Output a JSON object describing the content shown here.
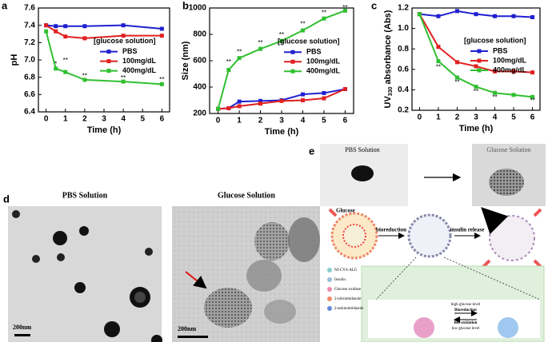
{
  "chart_data": [
    {
      "type": "line",
      "label": "a",
      "xlabel": "Time (h)",
      "ylabel": "pH",
      "legend_title": "[glucose solution]",
      "legend": "center right",
      "x": [
        0,
        0.5,
        1,
        2,
        4,
        6
      ],
      "xlim": [
        -0.4,
        6.4
      ],
      "xticks": [
        0,
        1,
        2,
        3,
        4,
        5,
        6
      ],
      "ylim": [
        6.4,
        7.6
      ],
      "yticks": [
        6.4,
        6.6,
        6.8,
        {
          "value": 7,
          "label": "7.0"
        },
        7.2,
        7.4,
        7.6
      ],
      "series": [
        {
          "name": "PBS",
          "color": "#2020d0",
          "values": [
            7.4,
            7.39,
            7.39,
            7.39,
            7.4,
            7.36
          ]
        },
        {
          "name": "100mg/dL",
          "color": "#e02020",
          "values": [
            7.4,
            7.33,
            7.27,
            7.25,
            7.28,
            7.28
          ]
        },
        {
          "name": "400mg/dL",
          "color": "#30c030",
          "values": [
            7.33,
            6.9,
            6.86,
            6.77,
            6.75,
            6.72
          ]
        }
      ],
      "annotations": [
        {
          "text": "*",
          "x": 0.5,
          "y": 6.95
        },
        {
          "text": "**",
          "x": 1,
          "y": 6.99
        },
        {
          "text": "**",
          "x": 2,
          "y": 6.81
        },
        {
          "text": "**",
          "x": 4,
          "y": 6.79
        },
        {
          "text": "**",
          "x": 6,
          "y": 6.77
        }
      ]
    },
    {
      "type": "line",
      "label": "b",
      "xlabel": "Time (h)",
      "ylabel": "Size (nm)",
      "legend_title": "[glucose solution]",
      "legend": "center right",
      "x": [
        0,
        0.5,
        1,
        2,
        3,
        4,
        5,
        6
      ],
      "xlim": [
        -0.4,
        6.4
      ],
      "xticks": [
        0,
        1,
        2,
        3,
        4,
        5,
        6
      ],
      "ylim": [
        200,
        1000
      ],
      "yticks": [
        200,
        400,
        600,
        800,
        1000
      ],
      "series": [
        {
          "name": "PBS",
          "color": "#2020d0",
          "values": [
            235,
            240,
            290,
            295,
            300,
            345,
            355,
            385
          ]
        },
        {
          "name": "100mg/dL",
          "color": "#e02020",
          "values": [
            235,
            240,
            255,
            275,
            295,
            300,
            315,
            385
          ]
        },
        {
          "name": "400mg/dL",
          "color": "#30c030",
          "values": [
            235,
            530,
            620,
            690,
            750,
            830,
            920,
            980
          ]
        }
      ],
      "annotations": [
        {
          "text": "**",
          "x": 0.5,
          "y": 590
        },
        {
          "text": "**",
          "x": 1,
          "y": 665
        },
        {
          "text": "**",
          "x": 2,
          "y": 735
        },
        {
          "text": "**",
          "x": 3,
          "y": 795
        },
        {
          "text": "**",
          "x": 4,
          "y": 875
        },
        {
          "text": "**",
          "x": 5,
          "y": 960
        },
        {
          "text": "**",
          "x": 6,
          "y": 1000
        }
      ]
    },
    {
      "type": "line",
      "label": "c",
      "xlabel": "Time (h)",
      "ylabel_parts": [
        "UV",
        "330",
        " absorbance (Abs)"
      ],
      "legend_title": "[glucose solution]",
      "legend": "center right",
      "x": [
        0,
        1,
        2,
        3,
        4,
        5,
        6
      ],
      "xlim": [
        -0.4,
        6.4
      ],
      "xticks": [
        0,
        1,
        2,
        3,
        4,
        5,
        6
      ],
      "ylim": [
        0.2,
        1.2
      ],
      "yticks": [
        0.2,
        0.4,
        0.6,
        0.8,
        {
          "value": 1,
          "label": "1.0"
        },
        1.2
      ],
      "series": [
        {
          "name": "PBS",
          "color": "#2020d0",
          "values": [
            1.14,
            1.12,
            1.17,
            1.14,
            1.12,
            1.12,
            1.11
          ]
        },
        {
          "name": "100mg/dL",
          "color": "#e02020",
          "values": [
            1.14,
            0.82,
            0.67,
            0.63,
            0.58,
            0.58,
            0.57
          ]
        },
        {
          "name": "400mg/dL",
          "color": "#30c030",
          "values": [
            1.14,
            0.68,
            0.52,
            0.43,
            0.37,
            0.35,
            0.33
          ]
        }
      ],
      "annotations": [
        {
          "text": "**",
          "x": 1,
          "y": 0.62
        },
        {
          "text": "**",
          "x": 2,
          "y": 0.47
        },
        {
          "text": "**",
          "x": 3,
          "y": 0.38
        },
        {
          "text": "**",
          "x": 4,
          "y": 0.32
        },
        {
          "text": "**",
          "x": 6,
          "y": 0.29
        }
      ]
    }
  ],
  "panel_d": {
    "label": "d",
    "left_title": "PBS Solution",
    "right_title": "Glucose Solution",
    "scale_left": "200nm",
    "scale_right": "200nm"
  },
  "panel_e": {
    "label": "e",
    "left_title": "PBS Solution",
    "right_title": "Glucose Solution",
    "glucose": "Glucose",
    "step1": "bioreduction",
    "step2": "insulin release",
    "legend": [
      "NI-CYS-ALG",
      "Insulin",
      "Glucose oxidase",
      "2-nitroimidazole",
      "2-aminoimidazole"
    ],
    "reaction": [
      "high glucose level",
      "Bioreduction",
      "Bio-oxidation",
      "low glucose level"
    ]
  }
}
